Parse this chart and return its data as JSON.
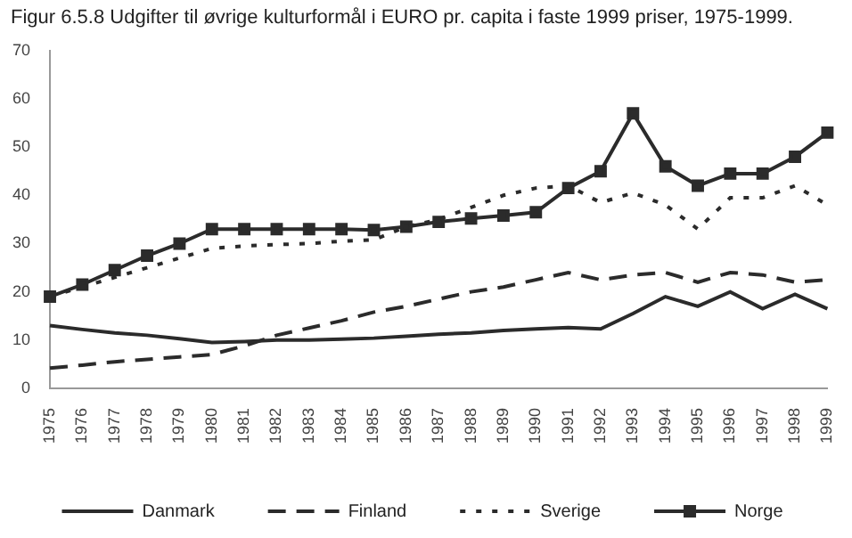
{
  "chart_data": {
    "type": "line",
    "title": "Figur 6.5.8 Udgifter til øvrige kulturformål i EURO pr. capita i faste 1999 priser, 1975-1999.",
    "categories": [
      "1975",
      "1976",
      "1977",
      "1978",
      "1979",
      "1980",
      "1981",
      "1982",
      "1983",
      "1984",
      "1985",
      "1986",
      "1987",
      "1988",
      "1989",
      "1990",
      "1991",
      "1992",
      "1993",
      "1994",
      "1995",
      "1996",
      "1997",
      "1998",
      "1999"
    ],
    "series": [
      {
        "name": "Danmark",
        "color": "#2b2b2b",
        "line_style": "solid",
        "marker": "none",
        "values": [
          13,
          12.2,
          11.5,
          11,
          10.3,
          9.5,
          9.7,
          10,
          10,
          10.2,
          10.4,
          10.8,
          11.2,
          11.5,
          12,
          12.3,
          12.6,
          12.3,
          15.5,
          19,
          17,
          20,
          16.5,
          19.5,
          16.5
        ]
      },
      {
        "name": "Finland",
        "color": "#2b2b2b",
        "line_style": "dashed",
        "marker": "none",
        "values": [
          4.2,
          4.8,
          5.5,
          6,
          6.5,
          7,
          8.8,
          11,
          12.5,
          14,
          15.8,
          17,
          18.5,
          20,
          21,
          22.5,
          24,
          22.5,
          23.5,
          24,
          22,
          24,
          23.5,
          22,
          22.5
        ]
      },
      {
        "name": "Sverige",
        "color": "#2b2b2b",
        "line_style": "dotted",
        "marker": "none",
        "values": [
          19,
          21,
          23,
          25,
          27,
          29,
          29.5,
          29.8,
          30,
          30.5,
          30.8,
          33.5,
          35,
          37.5,
          40,
          41.5,
          42,
          38.5,
          40.5,
          38,
          33,
          39.5,
          39.5,
          42,
          38
        ]
      },
      {
        "name": "Norge",
        "color": "#2b2b2b",
        "line_style": "solid",
        "marker": "square",
        "values": [
          19,
          21.5,
          24.5,
          27.5,
          30,
          33,
          33,
          33,
          33,
          33,
          32.8,
          33.5,
          34.5,
          35.2,
          35.8,
          36.5,
          41.5,
          45,
          57,
          46,
          42,
          44.5,
          44.5,
          48,
          53
        ]
      }
    ],
    "ylim": [
      0,
      70
    ],
    "yticks": [
      0,
      10,
      20,
      30,
      40,
      50,
      60,
      70
    ],
    "grid": false,
    "legend": "bottom"
  }
}
